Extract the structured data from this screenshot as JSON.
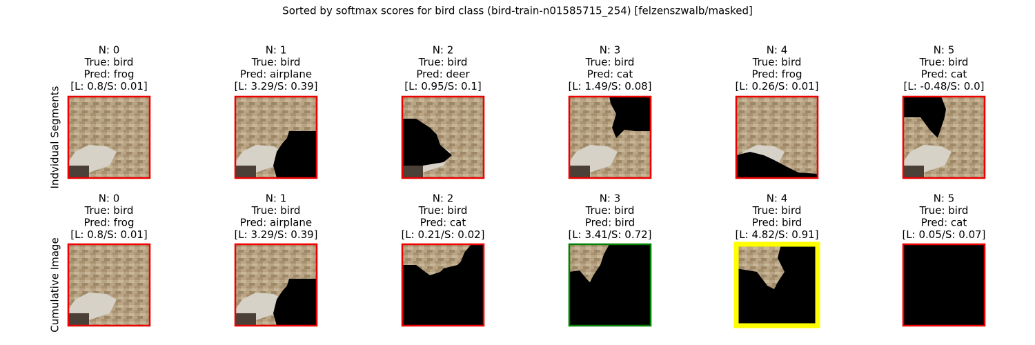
{
  "title": "Sorted by softmax scores for bird class (bird-train-n01585715_254) [felzenszwalb/masked]",
  "rows": [
    {
      "label": "Indvidual Segments",
      "panels": [
        {
          "lines": [
            "N: 0",
            "True: bird",
            "Pred: frog",
            "[L: 0.8/S: 0.01]"
          ],
          "border_color": "red"
        },
        {
          "lines": [
            "N: 1",
            "True: bird",
            "Pred: airplane",
            "[L: 3.29/S: 0.39]"
          ],
          "border_color": "red"
        },
        {
          "lines": [
            "N: 2",
            "True: bird",
            "Pred: deer",
            "[L: 0.95/S: 0.1]"
          ],
          "border_color": "red"
        },
        {
          "lines": [
            "N: 3",
            "True: bird",
            "Pred: cat",
            "[L: 1.49/S: 0.08]"
          ],
          "border_color": "red"
        },
        {
          "lines": [
            "N: 4",
            "True: bird",
            "Pred: frog",
            "[L: 0.26/S: 0.01]"
          ],
          "border_color": "red"
        },
        {
          "lines": [
            "N: 5",
            "True: bird",
            "Pred: cat",
            "[L: -0.48/S: 0.0]"
          ],
          "border_color": "red"
        }
      ]
    },
    {
      "label": "Cumulative Image",
      "panels": [
        {
          "lines": [
            "N: 0",
            "True: bird",
            "Pred: frog",
            "[L: 0.8/S: 0.01]"
          ],
          "border_color": "red"
        },
        {
          "lines": [
            "N: 1",
            "True: bird",
            "Pred: airplane",
            "[L: 3.29/S: 0.39]"
          ],
          "border_color": "red"
        },
        {
          "lines": [
            "N: 2",
            "True: bird",
            "Pred: cat",
            "[L: 0.21/S: 0.02]"
          ],
          "border_color": "red"
        },
        {
          "lines": [
            "N: 3",
            "True: bird",
            "Pred: bird",
            "[L: 3.41/S: 0.72]"
          ],
          "border_color": "green"
        },
        {
          "lines": [
            "N: 4",
            "True: bird",
            "Pred: bird",
            "[L: 4.82/S: 0.91]"
          ],
          "border_color": "yellow"
        },
        {
          "lines": [
            "N: 5",
            "True: bird",
            "Pred: cat",
            "[L: 0.05/S: 0.07]"
          ],
          "border_color": "red"
        }
      ]
    }
  ]
}
